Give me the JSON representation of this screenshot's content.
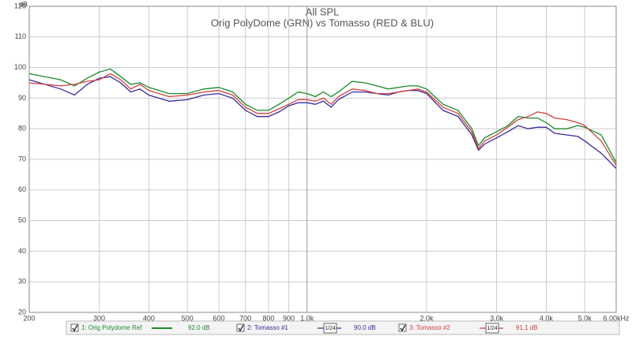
{
  "chart_data": {
    "type": "line",
    "title": "All SPL",
    "subtitle": "Orig PolyDome (GRN) vs Tomasso (RED & BLU)",
    "y_label": "dB",
    "x_scale": "log",
    "grid": true,
    "x": [
      200,
      240,
      260,
      280,
      300,
      320,
      340,
      360,
      380,
      400,
      450,
      500,
      550,
      600,
      650,
      700,
      750,
      800,
      850,
      900,
      950,
      1000,
      1050,
      1100,
      1150,
      1200,
      1300,
      1400,
      1500,
      1600,
      1700,
      1800,
      1900,
      2000,
      2200,
      2400,
      2600,
      2700,
      2800,
      3000,
      3200,
      3400,
      3600,
      3800,
      4000,
      4200,
      4500,
      4800,
      5000,
      5500,
      6000
    ],
    "xlim": [
      200,
      6000
    ],
    "xticks": [
      200,
      300,
      400,
      500,
      600,
      700,
      800,
      900,
      {
        "value": 1000,
        "label": "1.0k"
      },
      {
        "value": 2000,
        "label": "2.0k"
      },
      {
        "value": 3000,
        "label": "3.0k"
      },
      {
        "value": 4000,
        "label": "4.0k"
      },
      {
        "value": 5000,
        "label": "5.0k"
      },
      {
        "value": 6000,
        "label": "6.00kHz"
      }
    ],
    "ylim": [
      20,
      120
    ],
    "yticks": [
      20,
      30,
      40,
      50,
      60,
      70,
      80,
      90,
      100,
      110,
      120
    ],
    "series": [
      {
        "name": "1: Orig Polydome Ref",
        "color": "#1a8a2a",
        "level": "92.0 dB",
        "values": [
          98,
          96,
          94,
          96.5,
          98.5,
          99.5,
          97,
          94.5,
          95,
          93.5,
          91.5,
          91.5,
          93,
          93.5,
          92,
          88,
          86,
          86,
          88,
          90,
          92,
          91.5,
          90.5,
          92,
          90.5,
          92,
          95.5,
          95,
          94,
          93,
          93.5,
          94,
          94,
          93,
          88,
          86,
          80,
          74.5,
          77,
          79,
          81,
          84,
          83.5,
          83.5,
          82,
          80,
          80,
          81,
          80.5,
          78,
          69
        ]
      },
      {
        "name": "2: Tomasso #1",
        "color": "#3a2a9a",
        "level": "90.0 dB",
        "smoothing": "1/24",
        "values": [
          96,
          93,
          91,
          94.5,
          96.5,
          97,
          95,
          92,
          93,
          91,
          89,
          89.5,
          91,
          91.5,
          90,
          86,
          84,
          84,
          85.5,
          87.5,
          88.5,
          88.5,
          88,
          89,
          87,
          89.5,
          92,
          92,
          91.5,
          91,
          92,
          92.5,
          92.5,
          91.5,
          86,
          84,
          78,
          73,
          75,
          77,
          79,
          81,
          80,
          80.5,
          80.5,
          78.5,
          78,
          77.5,
          76,
          72,
          67
        ]
      },
      {
        "name": "3: Tomasso #2",
        "color": "#d04040",
        "level": "91.1 dB",
        "smoothing": "1/24",
        "values": [
          95,
          94,
          94.5,
          95.5,
          96,
          98,
          96,
          93,
          94.5,
          92.5,
          90.5,
          91,
          92,
          92.5,
          91,
          87,
          85,
          85,
          86.5,
          88,
          89.5,
          89.5,
          89,
          90,
          88,
          90.5,
          93,
          92.5,
          91.5,
          91.5,
          92,
          92.5,
          93,
          92,
          87,
          85,
          79,
          73.5,
          76,
          78,
          80.5,
          83,
          84,
          85.5,
          85,
          83.5,
          83,
          82,
          81,
          76,
          68
        ]
      }
    ]
  }
}
